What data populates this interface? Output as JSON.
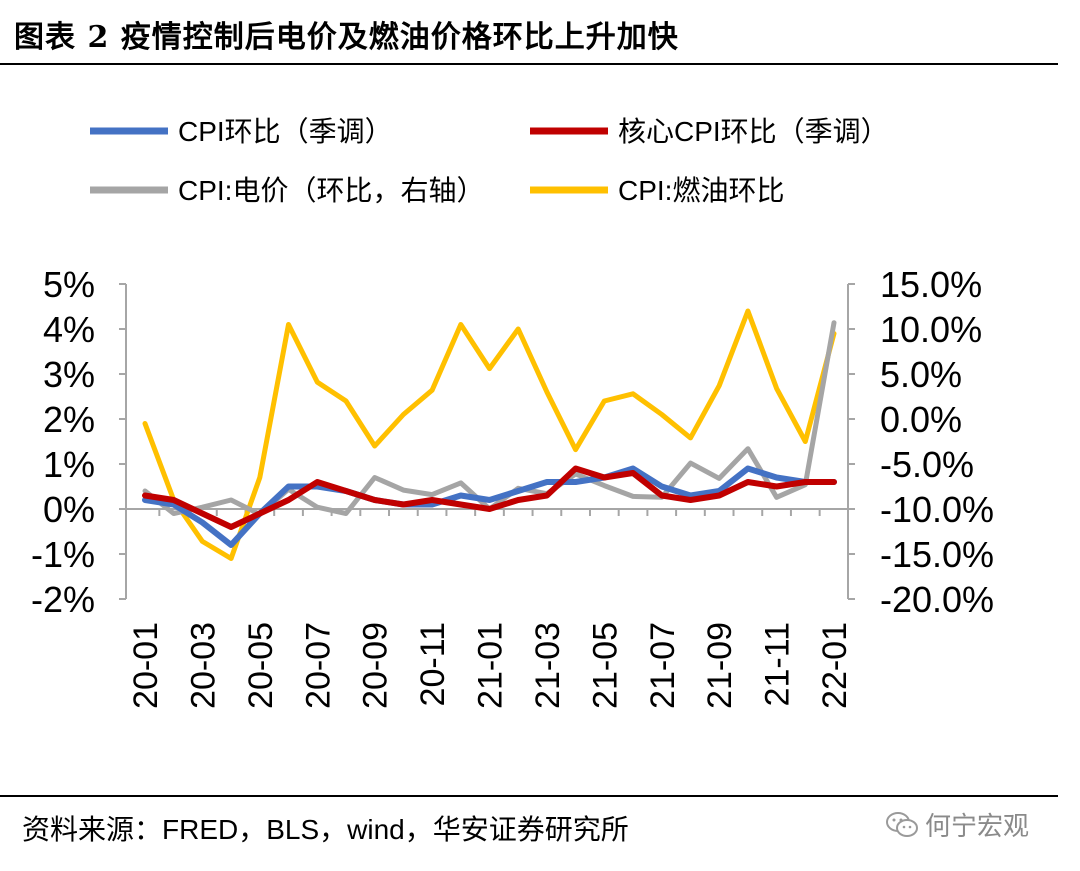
{
  "header": {
    "title": "图表 2 疫情控制后电价及燃油价格环比上升加快"
  },
  "footer": {
    "source": "资料来源：FRED，BLS，wind，华安证券研究所",
    "watermark": "何宁宏观"
  },
  "colors": {
    "cpi": "#4472C4",
    "core": "#C00000",
    "electric": "#A5A5A5",
    "fuel": "#FFC000"
  },
  "chart_data": {
    "type": "line",
    "title": "",
    "categories": [
      "20-01",
      "20-02",
      "20-03",
      "20-04",
      "20-05",
      "20-06",
      "20-07",
      "20-08",
      "20-09",
      "20-10",
      "20-11",
      "20-12",
      "21-01",
      "21-02",
      "21-03",
      "21-04",
      "21-05",
      "21-06",
      "21-07",
      "21-08",
      "21-09",
      "21-10",
      "21-11",
      "21-12",
      "22-01"
    ],
    "x_tick_labels": [
      "20-01",
      "20-03",
      "20-05",
      "20-07",
      "20-09",
      "20-11",
      "21-01",
      "21-03",
      "21-05",
      "21-07",
      "21-09",
      "21-11",
      "22-01"
    ],
    "left_axis": {
      "min": -2,
      "max": 5,
      "step": 1,
      "tick_labels": [
        "5%",
        "4%",
        "3%",
        "2%",
        "1%",
        "0%",
        "-1%",
        "-2%"
      ]
    },
    "right_axis": {
      "min": -20,
      "max": 15,
      "step": 5,
      "tick_labels": [
        "15.0%",
        "10.0%",
        "5.0%",
        "0.0%",
        "-5.0%",
        "-10.0%",
        "-15.0%",
        "-20.0%"
      ]
    },
    "series": [
      {
        "name": "CPI环比（季调）",
        "axis": "left",
        "color": "#4472C4",
        "values": [
          0.2,
          0.1,
          -0.3,
          -0.8,
          -0.1,
          0.5,
          0.5,
          0.4,
          0.2,
          0.1,
          0.1,
          0.3,
          0.2,
          0.4,
          0.6,
          0.6,
          0.7,
          0.9,
          0.5,
          0.3,
          0.4,
          0.9,
          0.7,
          0.6,
          0.6
        ]
      },
      {
        "name": "核心CPI环比（季调）",
        "axis": "left",
        "color": "#C00000",
        "values": [
          0.3,
          0.2,
          -0.1,
          -0.4,
          -0.1,
          0.2,
          0.6,
          0.4,
          0.2,
          0.1,
          0.2,
          0.1,
          0.0,
          0.2,
          0.3,
          0.9,
          0.7,
          0.8,
          0.3,
          0.2,
          0.3,
          0.6,
          0.5,
          0.6,
          0.6
        ]
      },
      {
        "name": "CPI:电价（环比，右轴）",
        "axis": "right",
        "color": "#A5A5A5",
        "values": [
          -8.0,
          -10.5,
          -9.8,
          -9.0,
          -10.6,
          -7.8,
          -9.8,
          -10.5,
          -6.5,
          -7.9,
          -8.4,
          -7.1,
          -10.0,
          -7.7,
          -8.3,
          -6.1,
          -7.4,
          -8.6,
          -8.7,
          -4.9,
          -6.6,
          -3.3,
          -8.7,
          -7.3,
          10.7
        ]
      },
      {
        "name": "CPI:燃油环比",
        "axis": "right",
        "color": "#FFC000",
        "values": [
          -0.5,
          -9.0,
          -13.6,
          -15.5,
          -6.5,
          10.5,
          4.1,
          2.0,
          -3.0,
          0.5,
          3.2,
          10.5,
          5.6,
          10.0,
          3.0,
          -3.4,
          2.0,
          2.8,
          0.5,
          -2.1,
          3.7,
          12.0,
          3.4,
          -2.5,
          9.5
        ]
      }
    ],
    "legend": [
      {
        "label": "CPI环比（季调）",
        "color": "#4472C4"
      },
      {
        "label": "核心CPI环比（季调）",
        "color": "#C00000"
      },
      {
        "label": "CPI:电价（环比，右轴）",
        "color": "#A5A5A5"
      },
      {
        "label": "CPI:燃油环比",
        "color": "#FFC000"
      }
    ],
    "legend_placement": "top",
    "grid": false
  }
}
